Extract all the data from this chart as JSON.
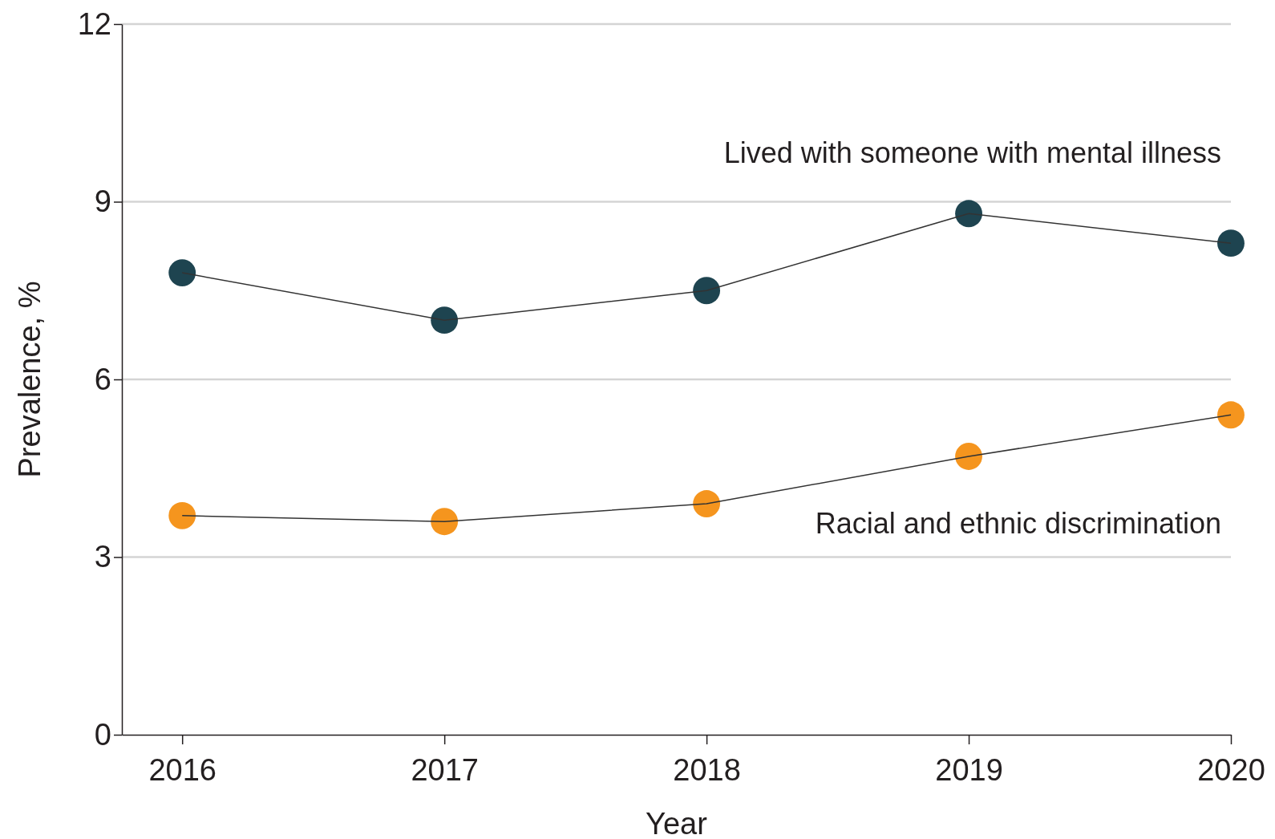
{
  "chart_data": {
    "type": "line",
    "xlabel": "Year",
    "ylabel": "Prevalence, %",
    "x": [
      2016,
      2017,
      2018,
      2019,
      2020
    ],
    "xlim": [
      2015.77,
      2020
    ],
    "xticks": [
      2016,
      2017,
      2018,
      2019,
      2020
    ],
    "ylim": [
      0,
      12
    ],
    "yticks": [
      0,
      3,
      6,
      9,
      12
    ],
    "grid": "y",
    "marker": "circle",
    "line_style": "solid",
    "series": [
      {
        "name": "Lived with someone with mental illness",
        "color": "#1e4450",
        "values": [
          7.8,
          7.0,
          7.5,
          8.8,
          8.3
        ]
      },
      {
        "name": "Racial and ethnic discrimination",
        "color": "#f5951e",
        "values": [
          3.7,
          3.6,
          3.9,
          4.7,
          5.4
        ]
      }
    ]
  }
}
